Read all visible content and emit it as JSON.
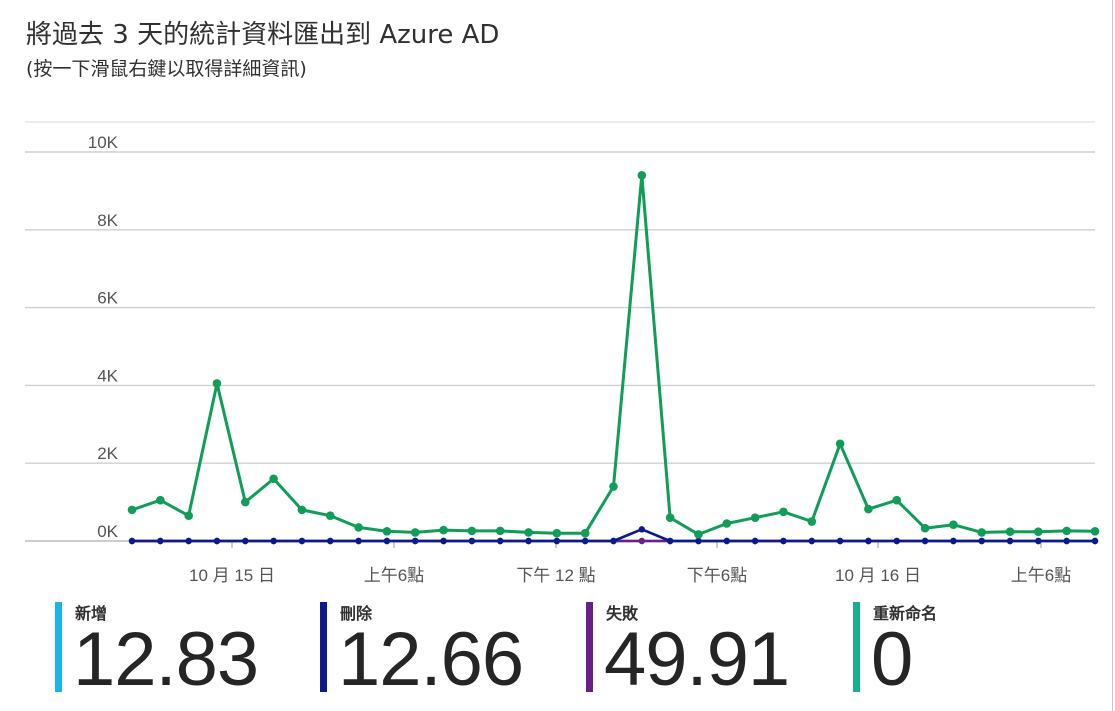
{
  "header": {
    "title": "將過去 3 天的統計資料匯出到 Azure AD",
    "subtitle": "(按一下滑鼠右鍵以取得詳細資訊)"
  },
  "chart_data": {
    "type": "line",
    "ylim": [
      0,
      10000
    ],
    "yticks": [
      "0K",
      "2K",
      "4K",
      "6K",
      "8K",
      "10K"
    ],
    "ytick_values": [
      0,
      2000,
      4000,
      6000,
      8000,
      10000
    ],
    "xticks": [
      "10 月 15 日",
      "上午6點",
      "下午 12 點",
      "下午6點",
      "10 月 16 日",
      "上午6點"
    ],
    "grid": true,
    "series": [
      {
        "name": "重新命名",
        "color": "#0f9d58",
        "values": [
          800,
          1050,
          650,
          4050,
          1000,
          1600,
          800,
          650,
          350,
          250,
          220,
          280,
          260,
          260,
          220,
          200,
          200,
          1400,
          9400,
          600,
          170,
          450,
          600,
          750,
          500,
          2500,
          820,
          1050,
          330,
          420,
          220,
          240,
          240,
          260,
          250
        ]
      },
      {
        "name": "刪除",
        "color": "#0a1a8c",
        "values": [
          0,
          0,
          0,
          0,
          0,
          0,
          0,
          0,
          0,
          0,
          0,
          0,
          0,
          0,
          0,
          0,
          0,
          0,
          300,
          0,
          0,
          0,
          0,
          0,
          0,
          0,
          0,
          0,
          0,
          0,
          0,
          0,
          0,
          0,
          0
        ]
      },
      {
        "name": "失敗",
        "color": "#6a1f8a",
        "values": [
          0,
          0,
          0,
          0,
          0,
          0,
          0,
          0,
          0,
          0,
          0,
          0,
          0,
          0,
          0,
          0,
          0,
          0,
          0,
          0,
          0,
          0,
          0,
          0,
          0,
          0,
          0,
          0,
          0,
          0,
          0,
          0,
          0,
          0,
          0
        ]
      },
      {
        "name": "新增",
        "color": "#33b1a0",
        "values": [
          0,
          0,
          0,
          0,
          0,
          0,
          0,
          0,
          0,
          0,
          0,
          0,
          0,
          0,
          0,
          0,
          0,
          0,
          0,
          0,
          0,
          0,
          0,
          0,
          0,
          0,
          0,
          0,
          0,
          0,
          0,
          0,
          0,
          0,
          0
        ]
      }
    ]
  },
  "stats": [
    {
      "label": "新增",
      "value": "12.83",
      "color": "#19b4e8"
    },
    {
      "label": "刪除",
      "value": "12.66",
      "color": "#0a1a8c"
    },
    {
      "label": "失敗",
      "value": "49.91",
      "color": "#6a1f8a"
    },
    {
      "label": "重新命名",
      "value": "0",
      "color": "#13b094"
    }
  ]
}
